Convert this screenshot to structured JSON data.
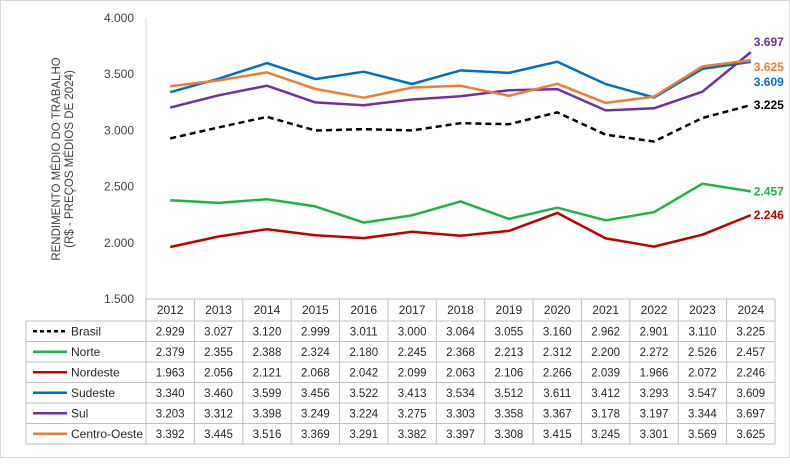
{
  "chart_data": {
    "type": "line",
    "ylabel_line1": "RENDIMENTO MÉDIO DO TRABALHO",
    "ylabel_line2": "(R$ - PREÇOS MÉDIOS DE 2024)",
    "ylim": [
      1500,
      4000
    ],
    "yticks": [
      1500,
      2000,
      2500,
      3000,
      3500,
      4000
    ],
    "ytick_labels": [
      "1.500",
      "2.000",
      "2.500",
      "3.000",
      "3.500",
      "4.000"
    ],
    "categories": [
      "2012",
      "2013",
      "2014",
      "2015",
      "2016",
      "2017",
      "2018",
      "2019",
      "2020",
      "2021",
      "2022",
      "2023",
      "2024"
    ],
    "grid": false,
    "legend": "data-table-below",
    "series": [
      {
        "name": "Brasil",
        "color": "#000000",
        "dashed": true,
        "values": [
          2929,
          3027,
          3120,
          2999,
          3011,
          3000,
          3064,
          3055,
          3160,
          2962,
          2901,
          3110,
          3225
        ],
        "labels": [
          "2.929",
          "3.027",
          "3.120",
          "2.999",
          "3.011",
          "3.000",
          "3.064",
          "3.055",
          "3.160",
          "2.962",
          "2.901",
          "3.110",
          "3.225"
        ],
        "end_label": "3.225"
      },
      {
        "name": "Norte",
        "color": "#1fb24a",
        "dashed": false,
        "values": [
          2379,
          2355,
          2388,
          2324,
          2180,
          2245,
          2368,
          2213,
          2312,
          2200,
          2272,
          2526,
          2457
        ],
        "labels": [
          "2.379",
          "2.355",
          "2.388",
          "2.324",
          "2.180",
          "2.245",
          "2.368",
          "2.213",
          "2.312",
          "2.200",
          "2.272",
          "2.526",
          "2.457"
        ],
        "end_label": "2.457"
      },
      {
        "name": "Nordeste",
        "color": "#c00000",
        "dashed": false,
        "values": [
          1963,
          2056,
          2121,
          2068,
          2042,
          2099,
          2063,
          2106,
          2266,
          2039,
          1966,
          2072,
          2246
        ],
        "labels": [
          "1.963",
          "2.056",
          "2.121",
          "2.068",
          "2.042",
          "2.099",
          "2.063",
          "2.106",
          "2.266",
          "2.039",
          "1.966",
          "2.072",
          "2.246"
        ],
        "end_label": "2.246"
      },
      {
        "name": "Sudeste",
        "color": "#0070c0",
        "dashed": false,
        "values": [
          3340,
          3460,
          3599,
          3456,
          3522,
          3413,
          3534,
          3512,
          3611,
          3412,
          3293,
          3547,
          3609
        ],
        "labels": [
          "3.340",
          "3.460",
          "3.599",
          "3.456",
          "3.522",
          "3.413",
          "3.534",
          "3.512",
          "3.611",
          "3.412",
          "3.293",
          "3.547",
          "3.609"
        ],
        "end_label": "3.609"
      },
      {
        "name": "Sul",
        "color": "#7030a0",
        "dashed": false,
        "values": [
          3203,
          3312,
          3398,
          3249,
          3224,
          3275,
          3303,
          3358,
          3367,
          3178,
          3197,
          3344,
          3697
        ],
        "labels": [
          "3.203",
          "3.312",
          "3.398",
          "3.249",
          "3.224",
          "3.275",
          "3.303",
          "3.358",
          "3.367",
          "3.178",
          "3.197",
          "3.344",
          "3.697"
        ],
        "end_label": "3.697"
      },
      {
        "name": "Centro-Oeste",
        "color": "#ed7d31",
        "dashed": false,
        "values": [
          3392,
          3445,
          3516,
          3369,
          3291,
          3382,
          3397,
          3308,
          3415,
          3245,
          3301,
          3569,
          3625
        ],
        "labels": [
          "3.392",
          "3.445",
          "3.516",
          "3.369",
          "3.291",
          "3.382",
          "3.397",
          "3.308",
          "3.415",
          "3.245",
          "3.301",
          "3.569",
          "3.625"
        ],
        "end_label": "3.625"
      }
    ]
  }
}
